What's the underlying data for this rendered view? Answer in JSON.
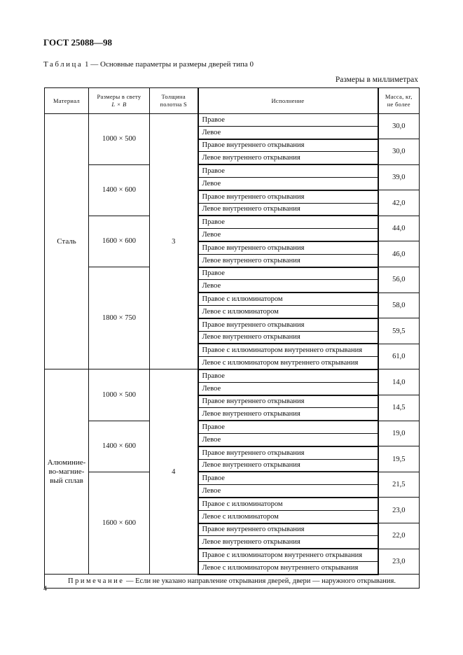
{
  "header": {
    "doc_id": "ГОСТ 25088—98"
  },
  "caption": {
    "label": "Таблица",
    "number": "1",
    "text": " — Основные параметры и размеры дверей типа 0"
  },
  "units": "Размеры в миллиметрах",
  "table": {
    "columns": [
      "Материал",
      "Размеры в свету",
      "L × B",
      "Толщина",
      "полотна S",
      "Исполнение",
      "Масса, кг,",
      "не более"
    ],
    "groups": [
      {
        "material": "Сталь",
        "thickness": "3",
        "sizes": [
          {
            "size": "1000 × 500",
            "pairs": [
              {
                "rows": [
                  "Правое",
                  "Левое"
                ],
                "mass": "30,0"
              },
              {
                "rows": [
                  "Правое внутреннего открывания",
                  "Левое внутреннего открывания"
                ],
                "mass": "30,0"
              }
            ]
          },
          {
            "size": "1400 × 600",
            "pairs": [
              {
                "rows": [
                  "Правое",
                  "Левое"
                ],
                "mass": "39,0"
              },
              {
                "rows": [
                  "Правое внутреннего открывания",
                  "Левое внутреннего открывания"
                ],
                "mass": "42,0"
              }
            ]
          },
          {
            "size": "1600 × 600",
            "pairs": [
              {
                "rows": [
                  "Правое",
                  "Левое"
                ],
                "mass": "44,0"
              },
              {
                "rows": [
                  "Правое внутреннего открывания",
                  "Левое внутреннего открывания"
                ],
                "mass": "46,0"
              }
            ]
          },
          {
            "size": "1800 × 750",
            "pairs": [
              {
                "rows": [
                  "Правое",
                  "Левое"
                ],
                "mass": "56,0"
              },
              {
                "rows": [
                  "Правое с иллюминатором",
                  "Левое с иллюминатором"
                ],
                "mass": "58,0"
              },
              {
                "rows": [
                  "Правое внутреннего открывания",
                  "Левое внутреннего открывания"
                ],
                "mass": "59,5"
              },
              {
                "rows": [
                  "Правое с иллюминатором внутреннего открывания",
                  "Левое с иллюминатором внутреннего открывания"
                ],
                "mass": "61,0"
              }
            ]
          }
        ]
      },
      {
        "material": "Алюминие-во-магние-вый сплав",
        "thickness": "4",
        "sizes": [
          {
            "size": "1000 × 500",
            "pairs": [
              {
                "rows": [
                  "Правое",
                  "Левое"
                ],
                "mass": "14,0"
              },
              {
                "rows": [
                  "Правое внутреннего открывания",
                  "Левое внутреннего открывания"
                ],
                "mass": "14,5"
              }
            ]
          },
          {
            "size": "1400 × 600",
            "pairs": [
              {
                "rows": [
                  "Правое",
                  "Левое"
                ],
                "mass": "19,0"
              },
              {
                "rows": [
                  "Правое внутреннего открывания",
                  "Левое внутреннего открывания"
                ],
                "mass": "19,5"
              }
            ]
          },
          {
            "size": "1600 × 600",
            "pairs": [
              {
                "rows": [
                  "Правое",
                  "Левое"
                ],
                "mass": "21,5"
              },
              {
                "rows": [
                  "Правое с иллюминатором",
                  "Левое с иллюминатором"
                ],
                "mass": "23,0"
              },
              {
                "rows": [
                  "Правое внутреннего открывания",
                  "Левое внутреннего открывания"
                ],
                "mass": "22,0"
              },
              {
                "rows": [
                  "Правое с иллюминатором внутреннего открывания",
                  "Левое с иллюминатором внутреннего открывания"
                ],
                "mass": "23,0"
              }
            ]
          }
        ]
      }
    ],
    "note_label": "Примечание",
    "note_text": " — Если не указано направление открывания дверей, двери — наружного открывания."
  },
  "page_number": "4"
}
